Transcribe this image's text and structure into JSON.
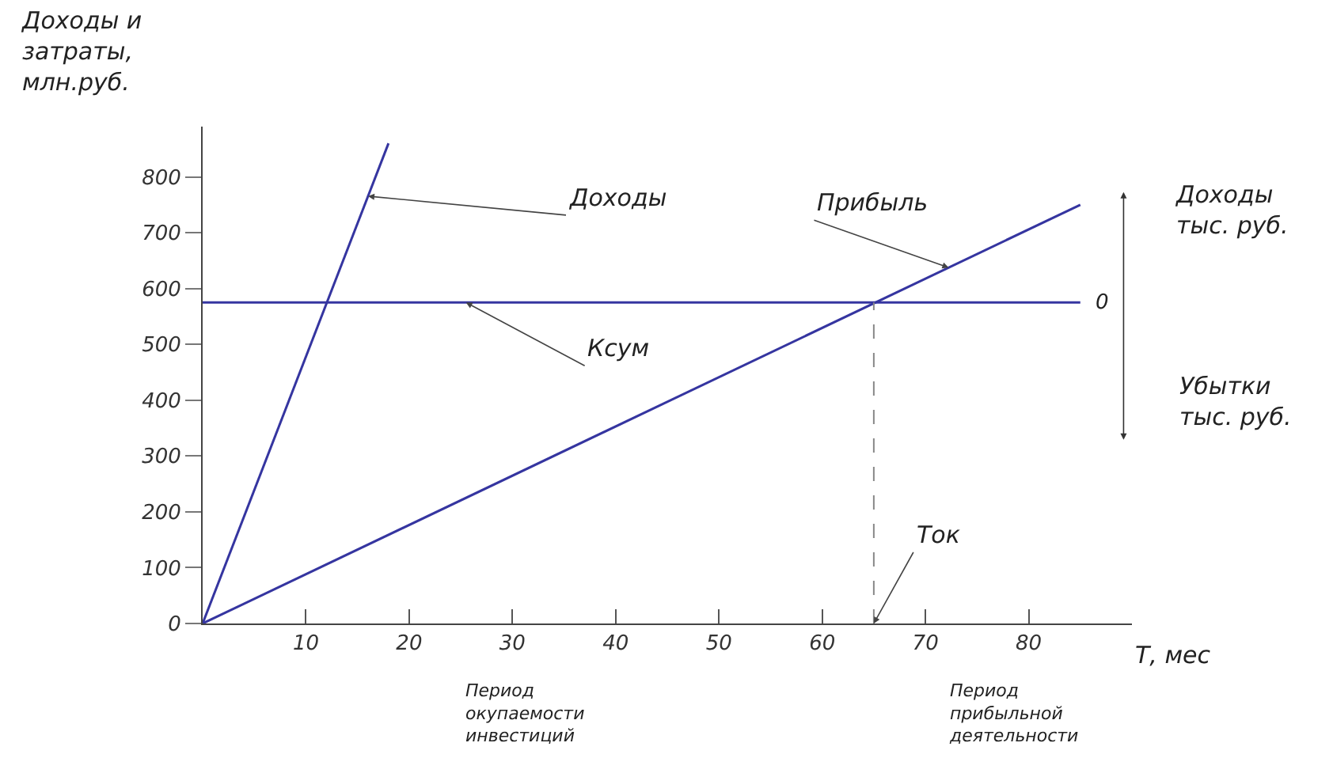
{
  "chart_data": {
    "type": "line",
    "ylabel": "Доходы и\nзатраты,\nмлн.руб.",
    "xlabel": "Т, мес",
    "xlim": [
      0,
      90
    ],
    "xticks": [
      10,
      20,
      30,
      40,
      50,
      60,
      70,
      80
    ],
    "ylim": [
      0,
      890
    ],
    "yticks": [
      0,
      100,
      200,
      300,
      400,
      500,
      600,
      700,
      800
    ],
    "grid": false,
    "legend": false,
    "marker": "none",
    "line_style": "solid",
    "series": [
      {
        "name": "Доходы",
        "color": "#3535a0",
        "x": [
          0,
          18
        ],
        "values": [
          0,
          860
        ]
      },
      {
        "name": "Ксум",
        "color": "#3535a0",
        "x": [
          0,
          85
        ],
        "values": [
          575,
          575
        ]
      },
      {
        "name": "Прибыль",
        "color": "#3535a0",
        "x": [
          0,
          85
        ],
        "values": [
          0,
          750
        ]
      }
    ],
    "ref_lines": [
      {
        "axis": "x",
        "value": 65,
        "label": "Ток",
        "color": "#888888",
        "line_style": "dashed"
      }
    ],
    "annotations": [
      "Доходы\nтыс. руб.",
      {
        "text": "0",
        "x": 85,
        "y": 575
      },
      "Убытки\nтыс. руб.",
      "Период\nокупаемости\nинвестиций",
      "Период\nприбыльной\nдеятельности"
    ]
  }
}
